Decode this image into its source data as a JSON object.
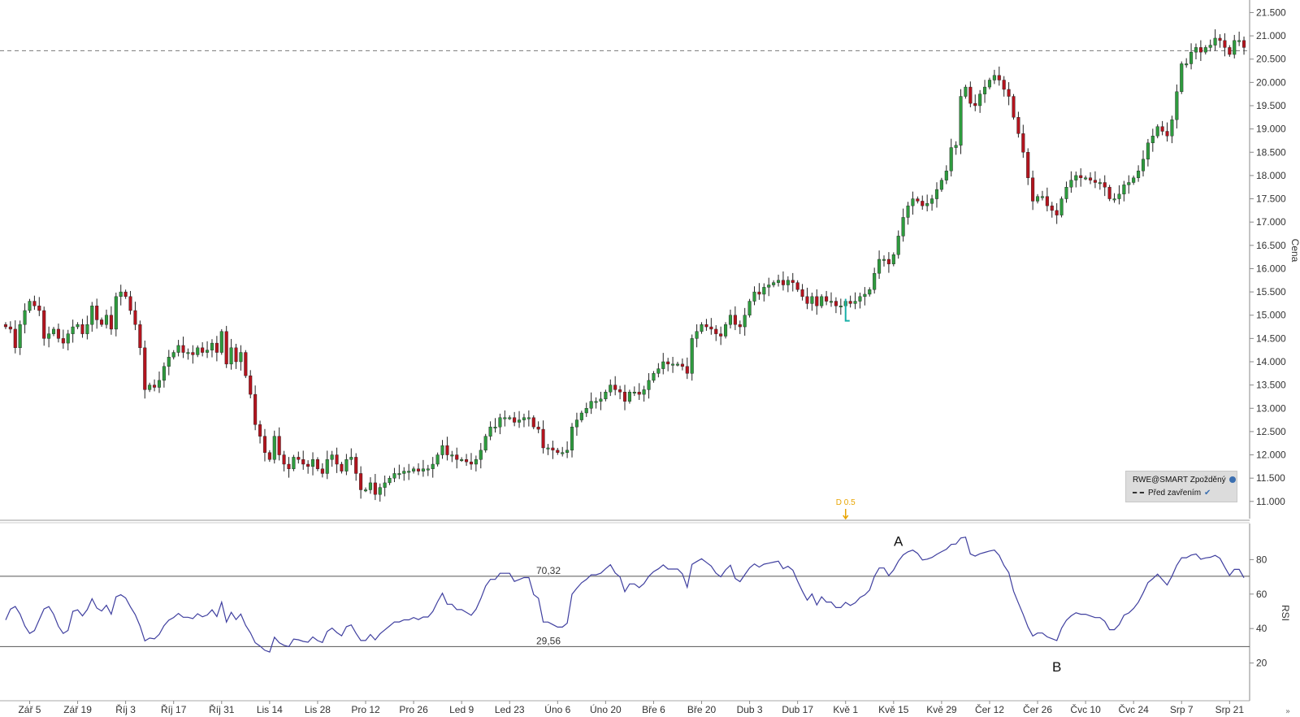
{
  "legend": {
    "symbol_label": "RWE@SMART Zpožděný",
    "line_label": "Před zavřením"
  },
  "colors": {
    "up": "#2e9b3e",
    "down": "#b3141e",
    "rsi_line": "#3f3f9f",
    "ref_line": "#7f7f7f",
    "marker": "#e8a400",
    "cursor": "#19b0a8"
  },
  "chart_data": [
    {
      "type": "candlestick",
      "ylabel": "Cena",
      "ylim": [
        10.7,
        21.7
      ],
      "yticks": [
        "11.000",
        "11.500",
        "12.000",
        "12.500",
        "13.000",
        "13.500",
        "14.000",
        "14.500",
        "15.000",
        "15.500",
        "16.000",
        "16.500",
        "17.000",
        "17.500",
        "18.000",
        "18.500",
        "19.000",
        "19.500",
        "20.000",
        "20.500",
        "21.000",
        "21.500"
      ],
      "ytick_values": [
        11.0,
        11.5,
        12.0,
        12.5,
        13.0,
        13.5,
        14.0,
        14.5,
        15.0,
        15.5,
        16.0,
        16.5,
        17.0,
        17.5,
        18.0,
        18.5,
        19.0,
        19.5,
        20.0,
        20.5,
        21.0,
        21.5
      ],
      "xticks": [
        "Zář 5",
        "Zář 19",
        "Říj 3",
        "Říj 17",
        "Říj 31",
        "Lis 14",
        "Lis 28",
        "Pro 12",
        "Pro 26",
        "Led 9",
        "Led 23",
        "Úno 6",
        "Úno 20",
        "Bře 6",
        "Bře 20",
        "Dub 3",
        "Dub 17",
        "Kvě 1",
        "Kvě 15",
        "Kvě 29",
        "Čer 12",
        "Čer 26",
        "Čvc 10",
        "Čvc 24",
        "Srp 7",
        "Srp 21"
      ],
      "xtick_index": [
        5,
        15,
        25,
        35,
        45,
        55,
        65,
        75,
        85,
        95,
        105,
        115,
        125,
        135,
        145,
        155,
        165,
        175,
        185,
        195,
        205,
        215,
        225,
        235,
        245,
        255
      ],
      "reference_line": 20.68,
      "event_marker": {
        "label": "D 0.5",
        "index": 175
      },
      "close": [
        14.75,
        14.7,
        14.3,
        14.8,
        15.1,
        15.3,
        15.2,
        15.1,
        14.5,
        14.6,
        14.7,
        14.5,
        14.4,
        14.6,
        14.75,
        14.8,
        14.6,
        14.8,
        15.2,
        14.9,
        14.8,
        15.0,
        14.7,
        15.4,
        15.5,
        15.4,
        15.1,
        14.8,
        14.3,
        13.4,
        13.5,
        13.45,
        13.6,
        13.9,
        14.1,
        14.2,
        14.35,
        14.2,
        14.2,
        14.15,
        14.3,
        14.2,
        14.25,
        14.4,
        14.2,
        14.65,
        13.95,
        14.3,
        14.0,
        14.2,
        13.7,
        13.3,
        12.65,
        12.4,
        12.05,
        11.9,
        12.4,
        12.0,
        11.8,
        11.7,
        11.95,
        11.9,
        11.8,
        11.75,
        11.9,
        11.7,
        11.6,
        11.9,
        12.0,
        11.8,
        11.65,
        11.9,
        11.95,
        11.6,
        11.25,
        11.25,
        11.4,
        11.15,
        11.3,
        11.4,
        11.5,
        11.6,
        11.6,
        11.65,
        11.65,
        11.7,
        11.65,
        11.7,
        11.7,
        11.8,
        12.0,
        12.2,
        12.0,
        12.0,
        11.9,
        11.9,
        11.85,
        11.8,
        11.9,
        12.1,
        12.4,
        12.6,
        12.6,
        12.8,
        12.8,
        12.8,
        12.7,
        12.75,
        12.8,
        12.8,
        12.6,
        12.55,
        12.15,
        12.15,
        12.1,
        12.05,
        12.05,
        12.1,
        12.6,
        12.75,
        12.9,
        13.0,
        13.15,
        13.15,
        13.2,
        13.35,
        13.5,
        13.4,
        13.35,
        13.15,
        13.35,
        13.35,
        13.3,
        13.4,
        13.6,
        13.75,
        13.85,
        14.0,
        13.95,
        13.95,
        13.95,
        13.9,
        13.75,
        14.5,
        14.65,
        14.8,
        14.75,
        14.7,
        14.6,
        14.55,
        14.8,
        15.0,
        14.8,
        14.75,
        15.0,
        15.3,
        15.5,
        15.45,
        15.6,
        15.65,
        15.7,
        15.75,
        15.65,
        15.75,
        15.7,
        15.55,
        15.4,
        15.25,
        15.4,
        15.2,
        15.4,
        15.3,
        15.3,
        15.2,
        15.2,
        15.3,
        15.25,
        15.3,
        15.4,
        15.45,
        15.55,
        15.9,
        16.2,
        16.2,
        16.1,
        16.3,
        16.7,
        17.1,
        17.35,
        17.5,
        17.45,
        17.35,
        17.4,
        17.5,
        17.7,
        17.9,
        18.1,
        18.6,
        18.65,
        19.7,
        19.9,
        19.55,
        19.5,
        19.75,
        19.9,
        20.05,
        20.15,
        20.05,
        19.85,
        19.7,
        19.25,
        18.9,
        18.5,
        17.95,
        17.45,
        17.55,
        17.55,
        17.35,
        17.25,
        17.15,
        17.5,
        17.75,
        17.9,
        18.0,
        17.95,
        17.95,
        17.9,
        17.85,
        17.85,
        17.75,
        17.5,
        17.5,
        17.6,
        17.8,
        17.85,
        17.95,
        18.1,
        18.35,
        18.7,
        18.85,
        19.05,
        18.95,
        18.85,
        19.2,
        19.8,
        20.4,
        20.4,
        20.65,
        20.75,
        20.65,
        20.75,
        20.8,
        20.95,
        20.9,
        20.75,
        20.6,
        20.9,
        20.9,
        20.75
      ],
      "open": [
        14.8,
        14.75,
        14.7,
        14.3,
        14.8,
        15.1,
        15.3,
        15.2,
        15.1,
        14.5,
        14.6,
        14.7,
        14.5,
        14.4,
        14.6,
        14.75,
        14.8,
        14.6,
        14.8,
        15.2,
        14.9,
        14.8,
        15.0,
        14.7,
        15.4,
        15.5,
        15.4,
        15.1,
        14.8,
        14.3,
        13.4,
        13.5,
        13.45,
        13.6,
        13.9,
        14.1,
        14.2,
        14.35,
        14.2,
        14.2,
        14.15,
        14.3,
        14.2,
        14.25,
        14.4,
        14.2,
        14.65,
        13.95,
        14.3,
        14.0,
        14.2,
        13.7,
        13.3,
        12.65,
        12.4,
        12.05,
        11.9,
        12.4,
        12.0,
        11.8,
        11.7,
        11.95,
        11.9,
        11.8,
        11.75,
        11.9,
        11.7,
        11.6,
        11.9,
        12.0,
        11.8,
        11.65,
        11.9,
        11.95,
        11.6,
        11.25,
        11.25,
        11.4,
        11.15,
        11.3,
        11.4,
        11.5,
        11.6,
        11.6,
        11.65,
        11.65,
        11.7,
        11.65,
        11.7,
        11.7,
        11.8,
        12.0,
        12.2,
        12.0,
        12.0,
        11.9,
        11.9,
        11.85,
        11.8,
        11.9,
        12.1,
        12.4,
        12.6,
        12.6,
        12.8,
        12.8,
        12.8,
        12.7,
        12.75,
        12.8,
        12.8,
        12.6,
        12.55,
        12.15,
        12.15,
        12.1,
        12.05,
        12.05,
        12.1,
        12.6,
        12.75,
        12.9,
        13.0,
        13.15,
        13.15,
        13.2,
        13.35,
        13.5,
        13.4,
        13.35,
        13.15,
        13.35,
        13.35,
        13.3,
        13.4,
        13.6,
        13.75,
        13.85,
        14.0,
        13.95,
        13.95,
        13.95,
        13.9,
        13.75,
        14.5,
        14.65,
        14.8,
        14.75,
        14.7,
        14.6,
        14.55,
        14.8,
        15.0,
        14.8,
        14.75,
        15.0,
        15.3,
        15.5,
        15.45,
        15.6,
        15.65,
        15.7,
        15.75,
        15.65,
        15.75,
        15.7,
        15.55,
        15.4,
        15.25,
        15.4,
        15.2,
        15.4,
        15.3,
        15.3,
        15.2,
        15.2,
        15.3,
        15.25,
        15.3,
        15.4,
        15.45,
        15.55,
        15.9,
        16.2,
        16.2,
        16.1,
        16.3,
        16.7,
        17.1,
        17.35,
        17.5,
        17.45,
        17.35,
        17.4,
        17.5,
        17.7,
        17.9,
        18.1,
        18.6,
        18.65,
        19.7,
        19.9,
        19.55,
        19.5,
        19.75,
        19.9,
        20.05,
        20.15,
        20.05,
        19.85,
        19.7,
        19.25,
        18.9,
        18.5,
        17.95,
        17.45,
        17.55,
        17.55,
        17.35,
        17.25,
        17.15,
        17.5,
        17.75,
        17.9,
        18.0,
        17.95,
        17.95,
        17.9,
        17.85,
        17.85,
        17.75,
        17.5,
        17.5,
        17.6,
        17.8,
        17.85,
        17.95,
        18.1,
        18.35,
        18.7,
        18.85,
        19.05,
        18.95,
        18.85,
        19.2,
        19.8,
        20.4,
        20.4,
        20.65,
        20.75,
        20.65,
        20.75,
        20.8,
        20.95,
        20.9,
        20.75,
        20.6,
        20.9,
        20.9
      ]
    },
    {
      "type": "line",
      "ylabel": "RSI",
      "ylim": [
        0,
        100
      ],
      "yticks": [
        "20",
        "40",
        "60",
        "80"
      ],
      "ytick_values": [
        20,
        40,
        60,
        80
      ],
      "reference_lines": [
        {
          "value": 70.32,
          "label": "70,32"
        },
        {
          "value": 29.56,
          "label": "29,56"
        }
      ],
      "annotations": [
        {
          "label": "A",
          "index": 186,
          "value": 88
        },
        {
          "label": "B",
          "index": 219,
          "value": 15
        }
      ]
    }
  ]
}
